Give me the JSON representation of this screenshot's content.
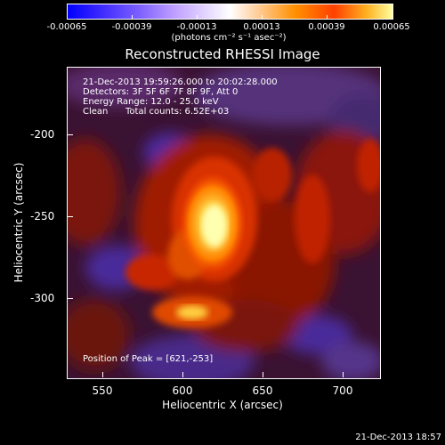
{
  "colorbar": {
    "ticks": [
      "-0.00065",
      "-0.00039",
      "-0.00013",
      "0.00013",
      "0.00039",
      "0.00065"
    ],
    "units": "(photons cm⁻² s⁻¹ asec⁻²)"
  },
  "title": "Reconstructed RHESSI Image",
  "annotations": {
    "time_range": "21-Dec-2013 19:59:26.000 to 20:02:28.000",
    "detectors": "Detectors: 3F 5F 6F 7F 8F 9F, Att 0",
    "energy": "Energy Range: 12.0 - 25.0 keV",
    "clean": "Clean",
    "counts": "Total counts: 6.52E+03",
    "peak": "Position of Peak = [621,-253]"
  },
  "axes": {
    "xlabel": "Heliocentric X (arcsec)",
    "ylabel": "Heliocentric Y (arcsec)",
    "xticks": [
      "550",
      "600",
      "650",
      "700"
    ],
    "yticks": [
      "-200",
      "-250",
      "-300"
    ]
  },
  "footer": "21-Dec-2013 18:57",
  "image": {
    "peak_x": 621,
    "peak_y": -253,
    "colormap": "red-temperature"
  }
}
